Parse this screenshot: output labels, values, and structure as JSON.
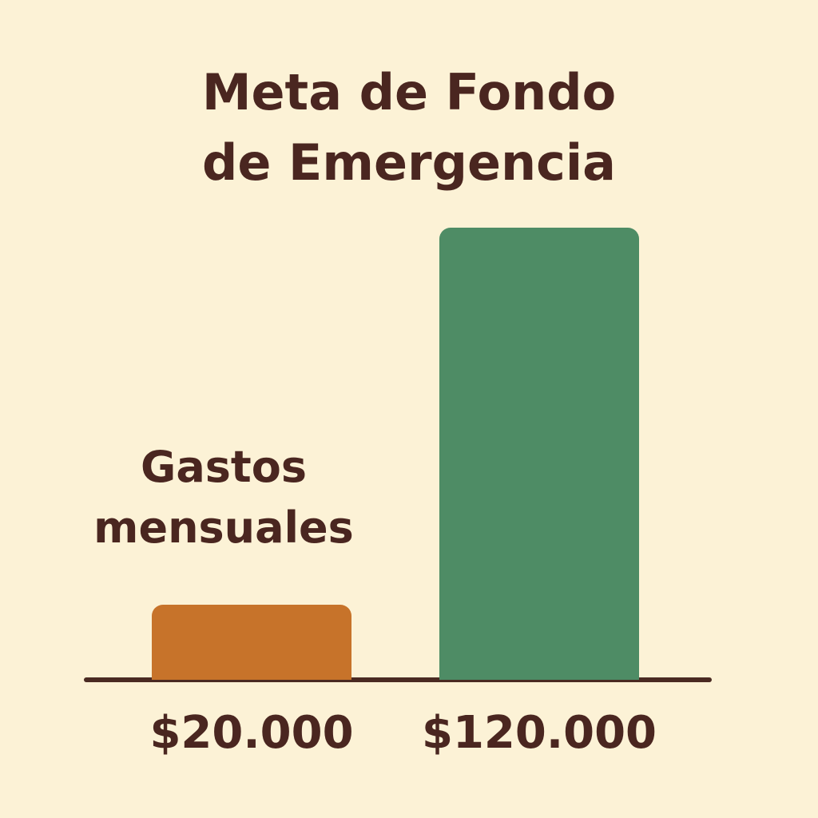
{
  "chart_data": {
    "type": "bar",
    "title": "Meta de Fondo de Emergencia",
    "categories": [
      "Gastos mensuales",
      null
    ],
    "values": [
      20000,
      120000
    ],
    "value_labels": [
      "$20.000",
      "$120.000"
    ],
    "colors": [
      "#c7732a",
      "#4e8c65"
    ]
  }
}
